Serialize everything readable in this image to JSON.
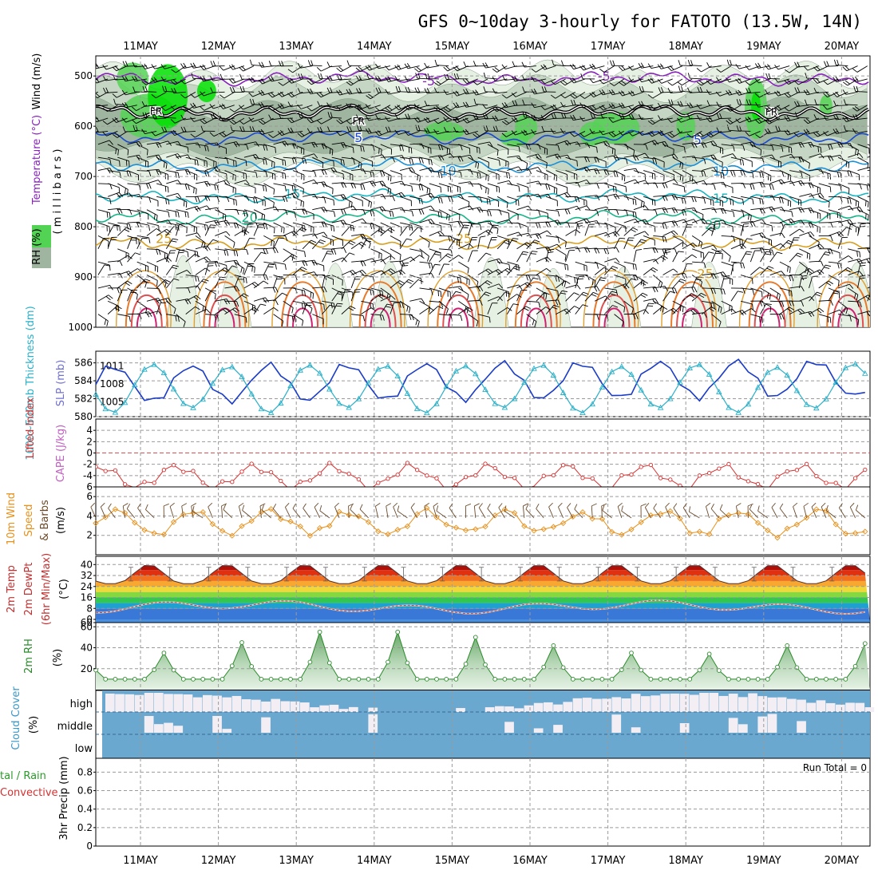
{
  "title": "GFS 0~10day 3-hourly for FATOTO (13.5W, 14N)",
  "dates": [
    "11MAY",
    "12MAY",
    "13MAY",
    "14MAY",
    "15MAY",
    "16MAY",
    "17MAY",
    "18MAY",
    "19MAY",
    "20MAY"
  ],
  "colors": {
    "rh_light": "#e6f1e4",
    "rh_mid": "#c5d7c4",
    "rh_dark": "#9fb5a0",
    "rh_green": "#53d353",
    "rh_bright": "#00e000",
    "wind_barb": "#000000",
    "slp": "#1a3cc8",
    "thickness": "#2ab0c8",
    "lifted_index": "#d83030",
    "wind_speed": "#e8901a",
    "wind_barb_10m": "#6b4a2a",
    "rh2m": "#2a8a2a",
    "cloud": "#6aa8d0",
    "cloud_gap": "#f2eef4"
  },
  "labels": {
    "panel1": {
      "rh": "RH (%)",
      "temp": "Temperature (°C)",
      "wind": "Wind (m/s)",
      "axis": "( m i l l i b a r s )"
    },
    "panel2": {
      "thk": "1000~500mb Thickness (dm)",
      "slp": "SLP (mb)"
    },
    "panel3": {
      "li": "Lifted Index",
      "cape": "CAPE (J/kg)"
    },
    "panel4": {
      "a": "10m Wind",
      "b": "Speed",
      "c": "& Barbs",
      "d": "(m/s)"
    },
    "panel5": {
      "a": "2m Temp",
      "b": "2m DewPt",
      "c": "(6hr Min/Max)",
      "d": "(°C)"
    },
    "panel6": {
      "a": "2m RH",
      "b": "(%)"
    },
    "panel7": {
      "a": "Cloud Cover",
      "b": "(%)",
      "high": "high",
      "middle": "middle",
      "low": "low"
    },
    "panel8": {
      "a": "tal / Rain",
      "b": "Convective",
      "c": "3hr Precip (mm)",
      "run_total": "Run Total = 0"
    }
  },
  "chart_data": [
    {
      "type": "contour",
      "name": "upper-air cross section",
      "y_axis": "pressure (millibars)",
      "yticks": [
        500,
        600,
        700,
        800,
        900,
        1000
      ],
      "ylim": [
        460,
        1000
      ],
      "temperature_contours": [
        {
          "value": "-5",
          "approx_mb": 505,
          "color": "#8a20c0"
        },
        {
          "value": "FR",
          "approx_mb": 572,
          "color": "#000000"
        },
        {
          "value": "5",
          "approx_mb": 622,
          "color": "#1a48d0"
        },
        {
          "value": "10",
          "approx_mb": 678,
          "color": "#1a90d8"
        },
        {
          "value": "15",
          "approx_mb": 740,
          "color": "#18b4c0"
        },
        {
          "value": "20",
          "approx_mb": 782,
          "color": "#18b48a"
        },
        {
          "value": "25",
          "approx_mb": 832,
          "color": "#d8a020"
        }
      ],
      "contour_labels": [
        {
          "text": "-5",
          "day": 3.7,
          "mb": 509,
          "color": "#8a20c0"
        },
        {
          "text": "-5",
          "day": 5.95,
          "mb": 500,
          "color": "#8a20c0"
        },
        {
          "text": "FR",
          "day": 0.2,
          "mb": 567,
          "color": "#000000"
        },
        {
          "text": "FR",
          "day": 2.8,
          "mb": 587,
          "color": "#000000"
        },
        {
          "text": "FR",
          "day": 8.1,
          "mb": 569,
          "color": "#000000"
        },
        {
          "text": "5",
          "day": 2.8,
          "mb": 622,
          "color": "#1a48d0"
        },
        {
          "text": "5",
          "day": 7.15,
          "mb": 627,
          "color": "#1a48d0"
        },
        {
          "text": "10",
          "day": 3.95,
          "mb": 688,
          "color": "#1a90d8"
        },
        {
          "text": "10",
          "day": 7.45,
          "mb": 689,
          "color": "#1a90d8"
        },
        {
          "text": "15",
          "day": 1.95,
          "mb": 734,
          "color": "#18b4c0"
        },
        {
          "text": "15",
          "day": 7.45,
          "mb": 743,
          "color": "#18b4c0"
        },
        {
          "text": "20",
          "day": 1.4,
          "mb": 781,
          "color": "#18b48a"
        },
        {
          "text": "20",
          "day": 7.35,
          "mb": 795,
          "color": "#18b48a"
        },
        {
          "text": "25",
          "day": 0.3,
          "mb": 823,
          "color": "#d8a020"
        },
        {
          "text": "25",
          "day": 4.15,
          "mb": 823,
          "color": "#d8a020"
        },
        {
          "text": "25",
          "day": 7.25,
          "mb": 893,
          "color": "#d8a020"
        }
      ]
    },
    {
      "type": "line",
      "name": "SLP and thickness",
      "y_left_ticks": [
        580,
        582,
        584,
        586
      ],
      "y_right_ticks": [
        1005,
        1008,
        1011
      ],
      "series": [
        {
          "name": "SLP (mb)",
          "color": "#1a3cc8",
          "axis": "slp",
          "amplitude": 3,
          "mean": 1008,
          "trend": 1
        },
        {
          "name": "1000~500mb Thickness (dm)",
          "color": "#2ab0c8",
          "axis": "thk",
          "amplitude": 2.5,
          "mean": 583.2
        }
      ]
    },
    {
      "type": "line",
      "name": "Lifted Index / CAPE",
      "yticks": [
        -4,
        -2,
        0,
        2,
        4,
        6
      ],
      "ylim": [
        -6,
        6
      ],
      "zero_line": 0,
      "series": [
        {
          "name": "Lifted Index",
          "color": "#d83030"
        }
      ]
    },
    {
      "type": "line",
      "name": "10m wind",
      "yticks": [
        2,
        4,
        6
      ],
      "ylim": [
        0,
        7
      ],
      "series": [
        {
          "name": "Speed",
          "color": "#e8901a"
        }
      ]
    },
    {
      "type": "area",
      "name": "2m temperature and dew point",
      "ylim": [
        -60,
        46
      ],
      "yticks": [
        -60,
        0,
        8,
        16,
        24,
        32,
        40
      ],
      "ytick_labels": [
        "60",
        "0",
        "8",
        "16",
        "24",
        "32",
        "40"
      ],
      "temp_max": 40,
      "temp_min": 26,
      "dewpt_mean": 9,
      "bands": [
        {
          "from": -60,
          "to": 0,
          "color": "#4a90e0"
        },
        {
          "from": 0,
          "to": 8,
          "color": "#3a78d8"
        },
        {
          "from": 8,
          "to": 12,
          "color": "#1ea0d0"
        },
        {
          "from": 12,
          "to": 16,
          "color": "#32c850"
        },
        {
          "from": 16,
          "to": 20,
          "color": "#86d840"
        },
        {
          "from": 20,
          "to": 24,
          "color": "#f0d838"
        },
        {
          "from": 24,
          "to": 28,
          "color": "#f8a830"
        },
        {
          "from": 28,
          "to": 32,
          "color": "#f07020"
        },
        {
          "from": 32,
          "to": 36,
          "color": "#e03010"
        },
        {
          "from": 36,
          "to": 40,
          "color": "#b01008"
        },
        {
          "from": 40,
          "to": 46,
          "color": "#6a4a40"
        }
      ]
    },
    {
      "type": "area",
      "name": "2m RH",
      "yticks": [
        20,
        40,
        60
      ],
      "ylim": [
        0,
        64
      ],
      "daily_peak": [
        35,
        45,
        55,
        55,
        50,
        42,
        35,
        34,
        42,
        44
      ],
      "trough": 10
    },
    {
      "type": "bar",
      "name": "cloud cover",
      "levels": [
        "high",
        "middle",
        "low"
      ]
    },
    {
      "type": "bar",
      "name": "3hr precip",
      "yticks": [
        0,
        0.2,
        0.4,
        0.6,
        0.8
      ],
      "ylim": [
        0,
        0.95
      ],
      "values": [],
      "run_total": 0
    }
  ]
}
